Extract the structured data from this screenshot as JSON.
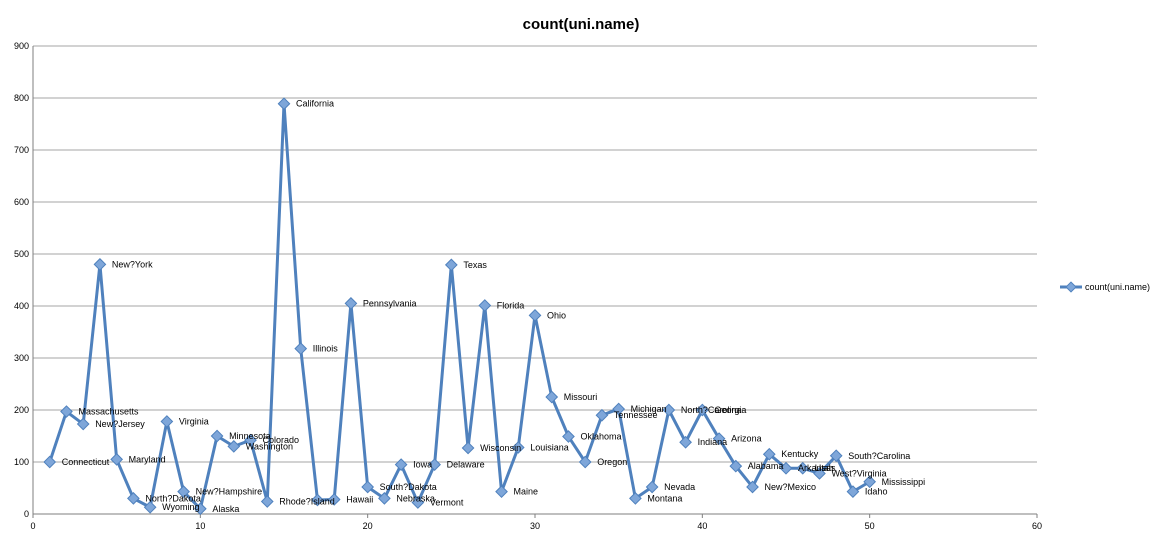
{
  "chart_data": {
    "type": "line",
    "title": "count(uni.name)",
    "xlabel": "",
    "ylabel": "",
    "xlim": [
      0,
      60
    ],
    "ylim": [
      0,
      900
    ],
    "x_ticks": [
      0,
      10,
      20,
      30,
      40,
      50,
      60
    ],
    "y_ticks": [
      0,
      100,
      200,
      300,
      400,
      500,
      600,
      700,
      800,
      900
    ],
    "grid": "horizontal",
    "legend_position": "right",
    "series_color": "#4F81BD",
    "marker_color": "#7EA6D9",
    "series": [
      {
        "name": "count(uni.name)",
        "points": [
          {
            "x": 1,
            "y": 100,
            "label": "Connecticut"
          },
          {
            "x": 2,
            "y": 197,
            "label": "Massachusetts"
          },
          {
            "x": 3,
            "y": 173,
            "label": "New?Jersey"
          },
          {
            "x": 4,
            "y": 480,
            "label": "New?York"
          },
          {
            "x": 5,
            "y": 105,
            "label": "Maryland"
          },
          {
            "x": 6,
            "y": 30,
            "label": "North?Dakota"
          },
          {
            "x": 7,
            "y": 13,
            "label": "Wyoming"
          },
          {
            "x": 8,
            "y": 178,
            "label": "Virginia"
          },
          {
            "x": 9,
            "y": 43,
            "label": "New?Hampshire"
          },
          {
            "x": 10,
            "y": 10,
            "label": "Alaska"
          },
          {
            "x": 11,
            "y": 150,
            "label": "Minnesota"
          },
          {
            "x": 12,
            "y": 130,
            "label": "Washington"
          },
          {
            "x": 13,
            "y": 142,
            "label": "Colorado"
          },
          {
            "x": 14,
            "y": 24,
            "label": "Rhode?Island"
          },
          {
            "x": 15,
            "y": 789,
            "label": "California"
          },
          {
            "x": 16,
            "y": 318,
            "label": "Illinois"
          },
          {
            "x": 17,
            "y": 27,
            "label": ""
          },
          {
            "x": 18,
            "y": 28,
            "label": "Hawaii"
          },
          {
            "x": 19,
            "y": 405,
            "label": "Pennsylvania"
          },
          {
            "x": 20,
            "y": 52,
            "label": "South?Dakota"
          },
          {
            "x": 21,
            "y": 30,
            "label": "Nebraska"
          },
          {
            "x": 22,
            "y": 95,
            "label": "Iowa"
          },
          {
            "x": 23,
            "y": 22,
            "label": "Vermont"
          },
          {
            "x": 24,
            "y": 95,
            "label": "Delaware"
          },
          {
            "x": 25,
            "y": 479,
            "label": "Texas"
          },
          {
            "x": 26,
            "y": 127,
            "label": "Wisconsin"
          },
          {
            "x": 27,
            "y": 401,
            "label": "Florida"
          },
          {
            "x": 28,
            "y": 43,
            "label": "Maine"
          },
          {
            "x": 29,
            "y": 128,
            "label": "Louisiana"
          },
          {
            "x": 30,
            "y": 382,
            "label": "Ohio"
          },
          {
            "x": 31,
            "y": 225,
            "label": "Missouri"
          },
          {
            "x": 32,
            "y": 149,
            "label": "Oklahoma"
          },
          {
            "x": 33,
            "y": 100,
            "label": "Oregon"
          },
          {
            "x": 34,
            "y": 190,
            "label": "Tennessee"
          },
          {
            "x": 35,
            "y": 202,
            "label": "Michigan"
          },
          {
            "x": 36,
            "y": 30,
            "label": "Montana"
          },
          {
            "x": 37,
            "y": 52,
            "label": "Nevada"
          },
          {
            "x": 38,
            "y": 200,
            "label": "North?Carolina"
          },
          {
            "x": 39,
            "y": 138,
            "label": "Indiana"
          },
          {
            "x": 40,
            "y": 200,
            "label": "Georgia"
          },
          {
            "x": 41,
            "y": 145,
            "label": "Arizona"
          },
          {
            "x": 42,
            "y": 92,
            "label": "Alabama"
          },
          {
            "x": 43,
            "y": 52,
            "label": "New?Mexico"
          },
          {
            "x": 44,
            "y": 115,
            "label": "Kentucky"
          },
          {
            "x": 45,
            "y": 88,
            "label": "Arkansas"
          },
          {
            "x": 46,
            "y": 88,
            "label": "Utah"
          },
          {
            "x": 47,
            "y": 78,
            "label": "West?Virginia"
          },
          {
            "x": 48,
            "y": 112,
            "label": "South?Carolina"
          },
          {
            "x": 49,
            "y": 43,
            "label": "Idaho"
          },
          {
            "x": 50,
            "y": 62,
            "label": "Mississippi"
          }
        ]
      }
    ]
  }
}
